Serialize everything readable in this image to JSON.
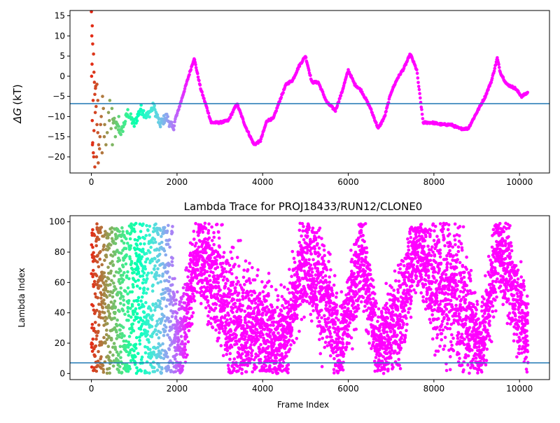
{
  "chart_data": [
    {
      "type": "scatter",
      "title": "",
      "xlabel": "",
      "ylabel": "ΔG (kT)",
      "ylabel_parts": {
        "symbol": "ΔG",
        "unit": "(kT)"
      },
      "xlim": [
        -500,
        10700
      ],
      "ylim": [
        -24,
        16.3
      ],
      "xticks": [
        0,
        2000,
        4000,
        6000,
        8000,
        10000
      ],
      "xtick_labels": [
        "0",
        "2000",
        "4000",
        "6000",
        "8000",
        "10000"
      ],
      "yticks": [
        -20,
        -15,
        -10,
        -5,
        0,
        5,
        10,
        15
      ],
      "ytick_labels": [
        "−20",
        "−15",
        "−10",
        "−5",
        "0",
        "5",
        "10",
        "15"
      ],
      "reference_line": {
        "y": -6.8,
        "color": "#1f77b4"
      },
      "colormap": "rainbow",
      "grid": false,
      "early_scatter": [
        [
          0,
          16
        ],
        [
          20,
          12.5
        ],
        [
          10,
          10
        ],
        [
          30,
          8
        ],
        [
          50,
          5.5
        ],
        [
          15,
          3
        ],
        [
          60,
          1
        ],
        [
          5,
          0
        ],
        [
          70,
          -1.5
        ],
        [
          100,
          -2.5
        ],
        [
          80,
          -4.5
        ],
        [
          40,
          -6
        ],
        [
          110,
          -7.5
        ],
        [
          90,
          -9
        ],
        [
          20,
          -11
        ],
        [
          130,
          -12
        ],
        [
          60,
          -13.5
        ],
        [
          150,
          -14
        ],
        [
          30,
          -16.5
        ],
        [
          170,
          -17
        ],
        [
          45,
          -19
        ],
        [
          120,
          -20
        ],
        [
          80,
          -22.5
        ],
        [
          160,
          -21.5
        ],
        [
          200,
          -15
        ],
        [
          230,
          -10
        ],
        [
          260,
          -5
        ],
        [
          280,
          -8
        ],
        [
          310,
          -12
        ],
        [
          340,
          -17
        ],
        [
          250,
          -19
        ],
        [
          370,
          -14
        ],
        [
          400,
          -9
        ],
        [
          430,
          -6
        ],
        [
          460,
          -13
        ],
        [
          490,
          -17
        ],
        [
          520,
          -11
        ],
        [
          560,
          -15
        ],
        [
          600,
          -12
        ],
        [
          640,
          -10
        ],
        [
          190,
          -18
        ],
        [
          300,
          -15
        ],
        [
          420,
          -11
        ],
        [
          480,
          -8
        ],
        [
          150,
          -6
        ],
        [
          95,
          -3
        ],
        [
          25,
          -17
        ],
        [
          55,
          -20
        ],
        [
          130,
          -2
        ],
        [
          215,
          -12
        ]
      ],
      "trace_anchors": [
        [
          500,
          -11
        ],
        [
          700,
          -14
        ],
        [
          850,
          -9
        ],
        [
          1000,
          -12
        ],
        [
          1150,
          -8
        ],
        [
          1300,
          -10
        ],
        [
          1450,
          -7.5
        ],
        [
          1600,
          -12
        ],
        [
          1750,
          -10
        ],
        [
          1900,
          -13
        ],
        [
          2100,
          -6
        ],
        [
          2300,
          1
        ],
        [
          2400,
          4.5
        ],
        [
          2550,
          -3
        ],
        [
          2700,
          -8
        ],
        [
          2800,
          -11.5
        ],
        [
          3000,
          -11.5
        ],
        [
          3200,
          -11
        ],
        [
          3400,
          -6.8
        ],
        [
          3600,
          -12.5
        ],
        [
          3800,
          -17
        ],
        [
          3950,
          -16
        ],
        [
          4100,
          -11
        ],
        [
          4250,
          -10.5
        ],
        [
          4400,
          -6
        ],
        [
          4550,
          -2
        ],
        [
          4700,
          -1
        ],
        [
          4850,
          2.5
        ],
        [
          5000,
          5
        ],
        [
          5150,
          -1.5
        ],
        [
          5300,
          -1.5
        ],
        [
          5500,
          -6.5
        ],
        [
          5700,
          -8.5
        ],
        [
          5850,
          -4
        ],
        [
          6000,
          1.5
        ],
        [
          6150,
          -2
        ],
        [
          6300,
          -3.5
        ],
        [
          6500,
          -7.5
        ],
        [
          6700,
          -13
        ],
        [
          6850,
          -10
        ],
        [
          7000,
          -4
        ],
        [
          7150,
          -0.5
        ],
        [
          7300,
          2
        ],
        [
          7450,
          5.5
        ],
        [
          7600,
          1.5
        ],
        [
          7750,
          -11.5
        ],
        [
          7950,
          -11.5
        ],
        [
          8200,
          -12
        ],
        [
          8400,
          -12
        ],
        [
          8600,
          -13
        ],
        [
          8800,
          -13
        ],
        [
          9000,
          -9
        ],
        [
          9200,
          -5
        ],
        [
          9350,
          -1
        ],
        [
          9480,
          4.5
        ],
        [
          9550,
          1
        ],
        [
          9700,
          -2
        ],
        [
          9900,
          -3
        ],
        [
          10050,
          -5
        ],
        [
          10200,
          -4
        ]
      ]
    },
    {
      "type": "scatter",
      "title": "Lambda Trace for PROJ18433/RUN12/CLONE0",
      "xlabel": "Frame Index",
      "ylabel": "Lambda Index",
      "xlim": [
        -500,
        10700
      ],
      "ylim": [
        -4,
        104
      ],
      "xticks": [
        0,
        2000,
        4000,
        6000,
        8000,
        10000
      ],
      "xtick_labels": [
        "0",
        "2000",
        "4000",
        "6000",
        "8000",
        "10000"
      ],
      "yticks": [
        0,
        20,
        40,
        60,
        80,
        100
      ],
      "ytick_labels": [
        "0",
        "20",
        "40",
        "60",
        "80",
        "100"
      ],
      "reference_line": {
        "y": 7,
        "color": "#1f77b4"
      },
      "colormap": "rainbow",
      "grid": false,
      "n_points": 5200,
      "frame_range": [
        0,
        10200
      ],
      "lambda_range": [
        0,
        99
      ],
      "density_profile": [
        [
          0,
          50,
          50
        ],
        [
          1000,
          50,
          50
        ],
        [
          1900,
          30,
          30
        ],
        [
          2100,
          20,
          25
        ],
        [
          2500,
          80,
          25
        ],
        [
          2800,
          65,
          30
        ],
        [
          3300,
          35,
          35
        ],
        [
          3900,
          30,
          30
        ],
        [
          4500,
          20,
          25
        ],
        [
          5000,
          80,
          25
        ],
        [
          5400,
          55,
          35
        ],
        [
          5800,
          15,
          20
        ],
        [
          6300,
          80,
          25
        ],
        [
          6700,
          15,
          20
        ],
        [
          7200,
          40,
          30
        ],
        [
          7600,
          85,
          20
        ],
        [
          8000,
          60,
          35
        ],
        [
          8500,
          55,
          40
        ],
        [
          9100,
          15,
          20
        ],
        [
          9500,
          85,
          25
        ],
        [
          10200,
          25,
          25
        ]
      ]
    }
  ]
}
